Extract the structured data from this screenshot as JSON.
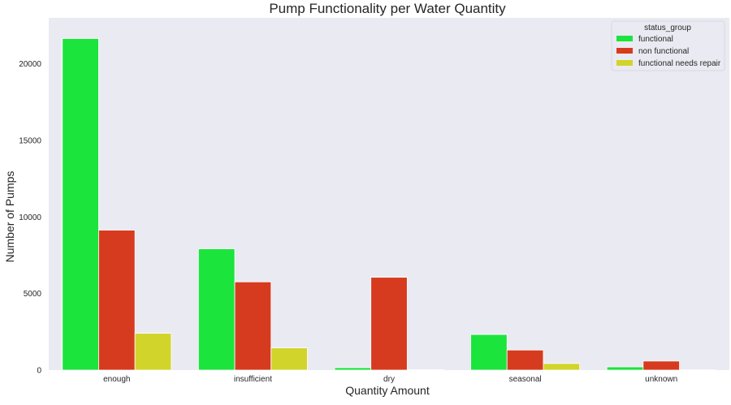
{
  "chart_data": {
    "type": "bar",
    "title": "Pump Functionality per Water Quantity",
    "xlabel": "Quantity Amount",
    "ylabel": "Number of Pumps",
    "categories": [
      "enough",
      "insufficient",
      "dry",
      "seasonal",
      "unknown"
    ],
    "series": [
      {
        "name": "functional",
        "color": "#1be43c",
        "values": [
          21650,
          7920,
          160,
          2325,
          210
        ]
      },
      {
        "name": "non functional",
        "color": "#d73b1f",
        "values": [
          9140,
          5760,
          6060,
          1310,
          590
        ]
      },
      {
        "name": "functional needs repair",
        "color": "#d1d42a",
        "values": [
          2400,
          1450,
          30,
          430,
          20
        ]
      }
    ],
    "ylim": [
      0,
      23000
    ],
    "yticks": [
      0,
      5000,
      10000,
      15000,
      20000
    ],
    "legend": {
      "title": "status_group",
      "placement": "top-right"
    },
    "grid": false,
    "plot_background": "#eaeaf2"
  }
}
